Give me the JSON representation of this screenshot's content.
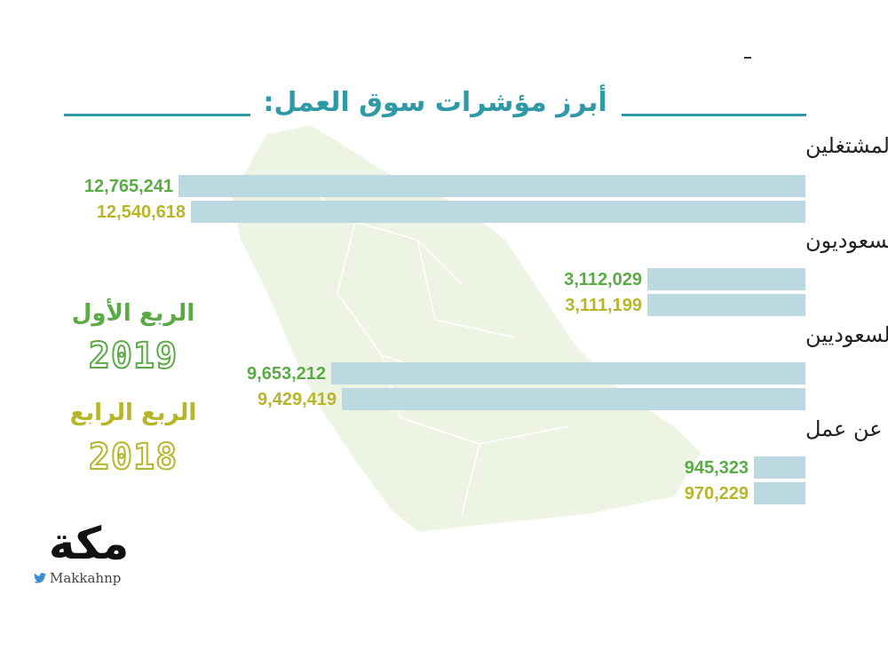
{
  "title": "أبرز مؤشرات سوق العمل:",
  "legend": [
    {
      "label": "الربع الأول",
      "year": "2019",
      "color": "#5aab46"
    },
    {
      "label": "الربع الرابع",
      "year": "2018",
      "color": "#b7b62a"
    }
  ],
  "logo": {
    "word": "مكة",
    "handle": "Makkahnp",
    "icon": "twitter-bird-icon"
  },
  "colors": {
    "accent": "#2f9aa6",
    "bar": "#bcd9e1",
    "map": "#eef4e4"
  },
  "chart_data": {
    "type": "bar",
    "orientation": "horizontal",
    "categories": [
      "إجمالي المشتغلين",
      "المشتغلون السعوديون",
      "المشتغلون غير السعوديين",
      "السعوديون الباحثون عن عمل"
    ],
    "series": [
      {
        "name": "الربع الأول 2019",
        "values": [
          12765241,
          3112029,
          9653212,
          945323
        ],
        "labels": [
          "12,765,241",
          "3,112,029",
          "9,653,212",
          "945,323"
        ],
        "color": "#5aab46"
      },
      {
        "name": "الربع الرابع 2018",
        "values": [
          12540618,
          3111199,
          9429419,
          970229
        ],
        "labels": [
          "12,540,618",
          "3,111,199",
          "9,429,419",
          "970,229"
        ],
        "color": "#b7b62a"
      }
    ]
  }
}
